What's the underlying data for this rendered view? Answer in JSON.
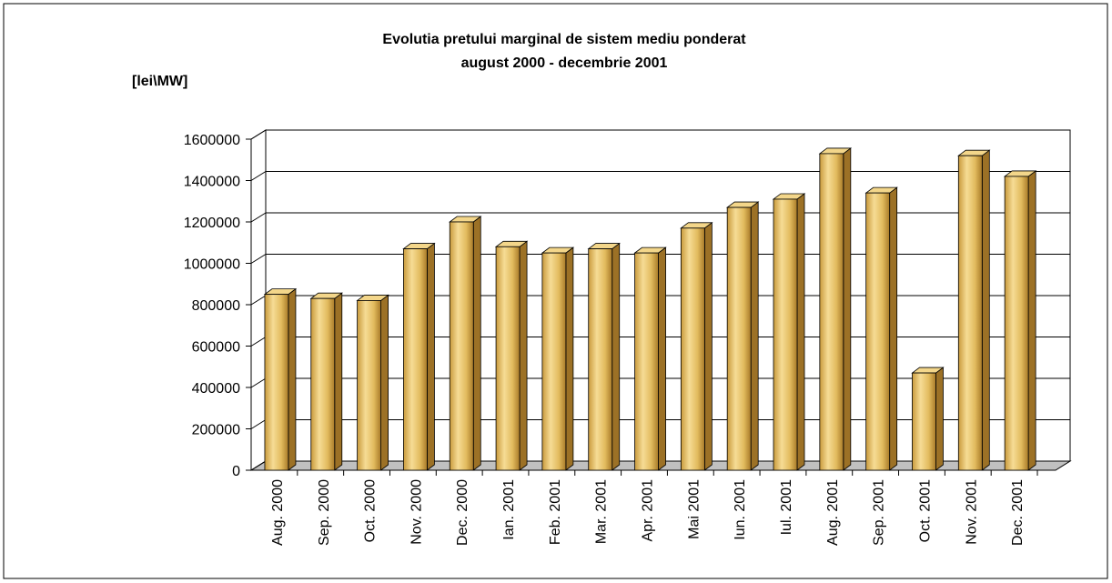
{
  "chart_data": {
    "type": "bar3d",
    "title": "Evolutia pretului marginal de sistem mediu ponderat",
    "subtitle": "august 2000 - decembrie 2001",
    "y_label": "[lei\\MW]",
    "categories": [
      "Aug. 2000",
      "Sep. 2000",
      "Oct. 2000",
      "Nov. 2000",
      "Dec. 2000",
      "Ian. 2001",
      "Feb. 2001",
      "Mar. 2001",
      "Apr. 2001",
      "Mai 2001",
      "Iun. 2001",
      "Iul. 2001",
      "Aug. 2001",
      "Sep. 2001",
      "Oct. 2001",
      "Nov. 2001",
      "Dec. 2001"
    ],
    "values": [
      850000,
      830000,
      820000,
      1070000,
      1200000,
      1080000,
      1050000,
      1070000,
      1050000,
      1170000,
      1270000,
      1310000,
      1530000,
      1340000,
      470000,
      1520000,
      1420000
    ],
    "color": "#e2bb5e",
    "ylim": [
      0,
      1600000
    ],
    "yticks": [
      0,
      200000,
      400000,
      600000,
      800000,
      1000000,
      1200000,
      1400000,
      1600000
    ],
    "grid": true
  }
}
